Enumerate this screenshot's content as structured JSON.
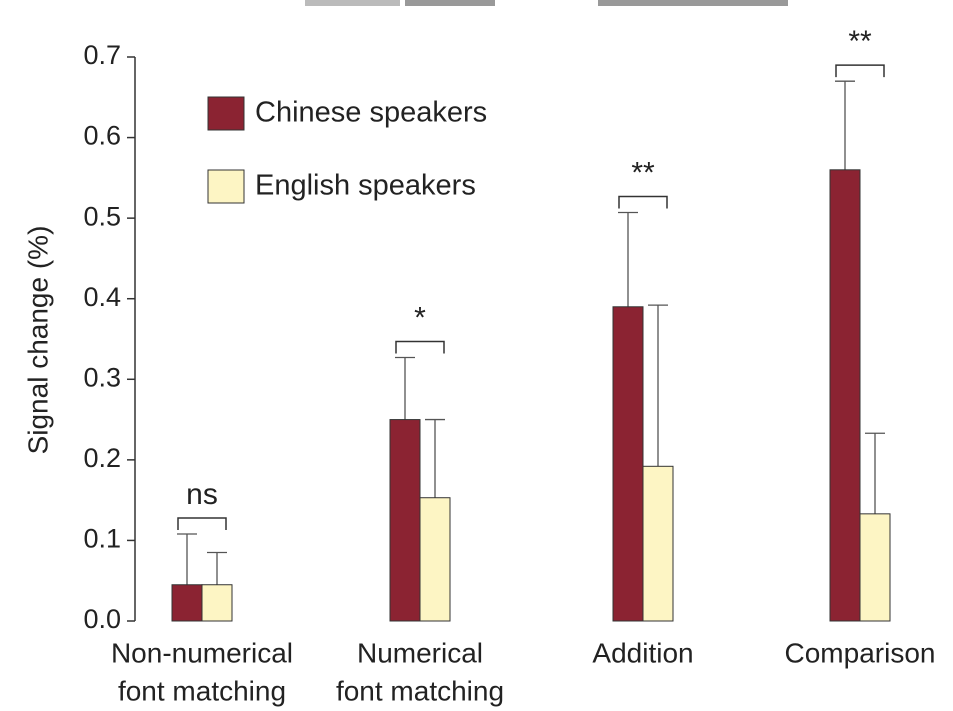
{
  "chart_data": {
    "type": "bar",
    "y_label": "Signal change (%)",
    "categories": [
      [
        "Non-numerical",
        "font matching"
      ],
      [
        "Numerical",
        "font matching"
      ],
      [
        "Addition"
      ],
      [
        "Comparison"
      ]
    ],
    "series": [
      {
        "name": "Chinese speakers",
        "color": "#8b2332",
        "values": [
          0.045,
          0.25,
          0.39,
          0.56
        ],
        "errors": [
          0.063,
          0.077,
          0.117,
          0.11
        ]
      },
      {
        "name": "English speakers",
        "color": "#fdf5c4",
        "values": [
          0.045,
          0.153,
          0.192,
          0.133
        ],
        "errors": [
          0.04,
          0.097,
          0.2,
          0.1
        ]
      }
    ],
    "significance": [
      "ns",
      "*",
      "**",
      "**"
    ],
    "ylim": [
      0,
      0.7
    ],
    "yticks": [
      {
        "value": 0,
        "label": "0.0"
      },
      0.1,
      0.2,
      0.3,
      0.4,
      0.5,
      0.6,
      0.7
    ],
    "legend": "upper left"
  }
}
